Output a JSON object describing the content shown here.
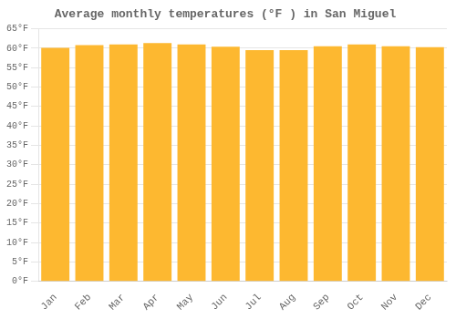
{
  "chart_data": {
    "type": "bar",
    "title": "Average monthly temperatures (°F ) in San Miguel",
    "categories": [
      "Jan",
      "Feb",
      "Mar",
      "Apr",
      "May",
      "Jun",
      "Jul",
      "Aug",
      "Sep",
      "Oct",
      "Nov",
      "Dec"
    ],
    "values": [
      60.1,
      60.8,
      61.0,
      61.3,
      61.0,
      60.4,
      59.5,
      59.5,
      60.5,
      61.0,
      60.5,
      60.3
    ],
    "color": "#FDB830",
    "ylim": [
      0,
      65
    ],
    "yticks": [
      {
        "value": 0,
        "label": "0°F"
      },
      {
        "value": 5,
        "label": "5°F"
      },
      {
        "value": 10,
        "label": "10°F"
      },
      {
        "value": 15,
        "label": "15°F"
      },
      {
        "value": 20,
        "label": "20°F"
      },
      {
        "value": 25,
        "label": "25°F"
      },
      {
        "value": 30,
        "label": "30°F"
      },
      {
        "value": 35,
        "label": "35°F"
      },
      {
        "value": 40,
        "label": "40°F"
      },
      {
        "value": 45,
        "label": "45°F"
      },
      {
        "value": 50,
        "label": "50°F"
      },
      {
        "value": 55,
        "label": "55°F"
      },
      {
        "value": 60,
        "label": "60°F"
      },
      {
        "value": 65,
        "label": "65°F"
      }
    ],
    "grid": true
  }
}
